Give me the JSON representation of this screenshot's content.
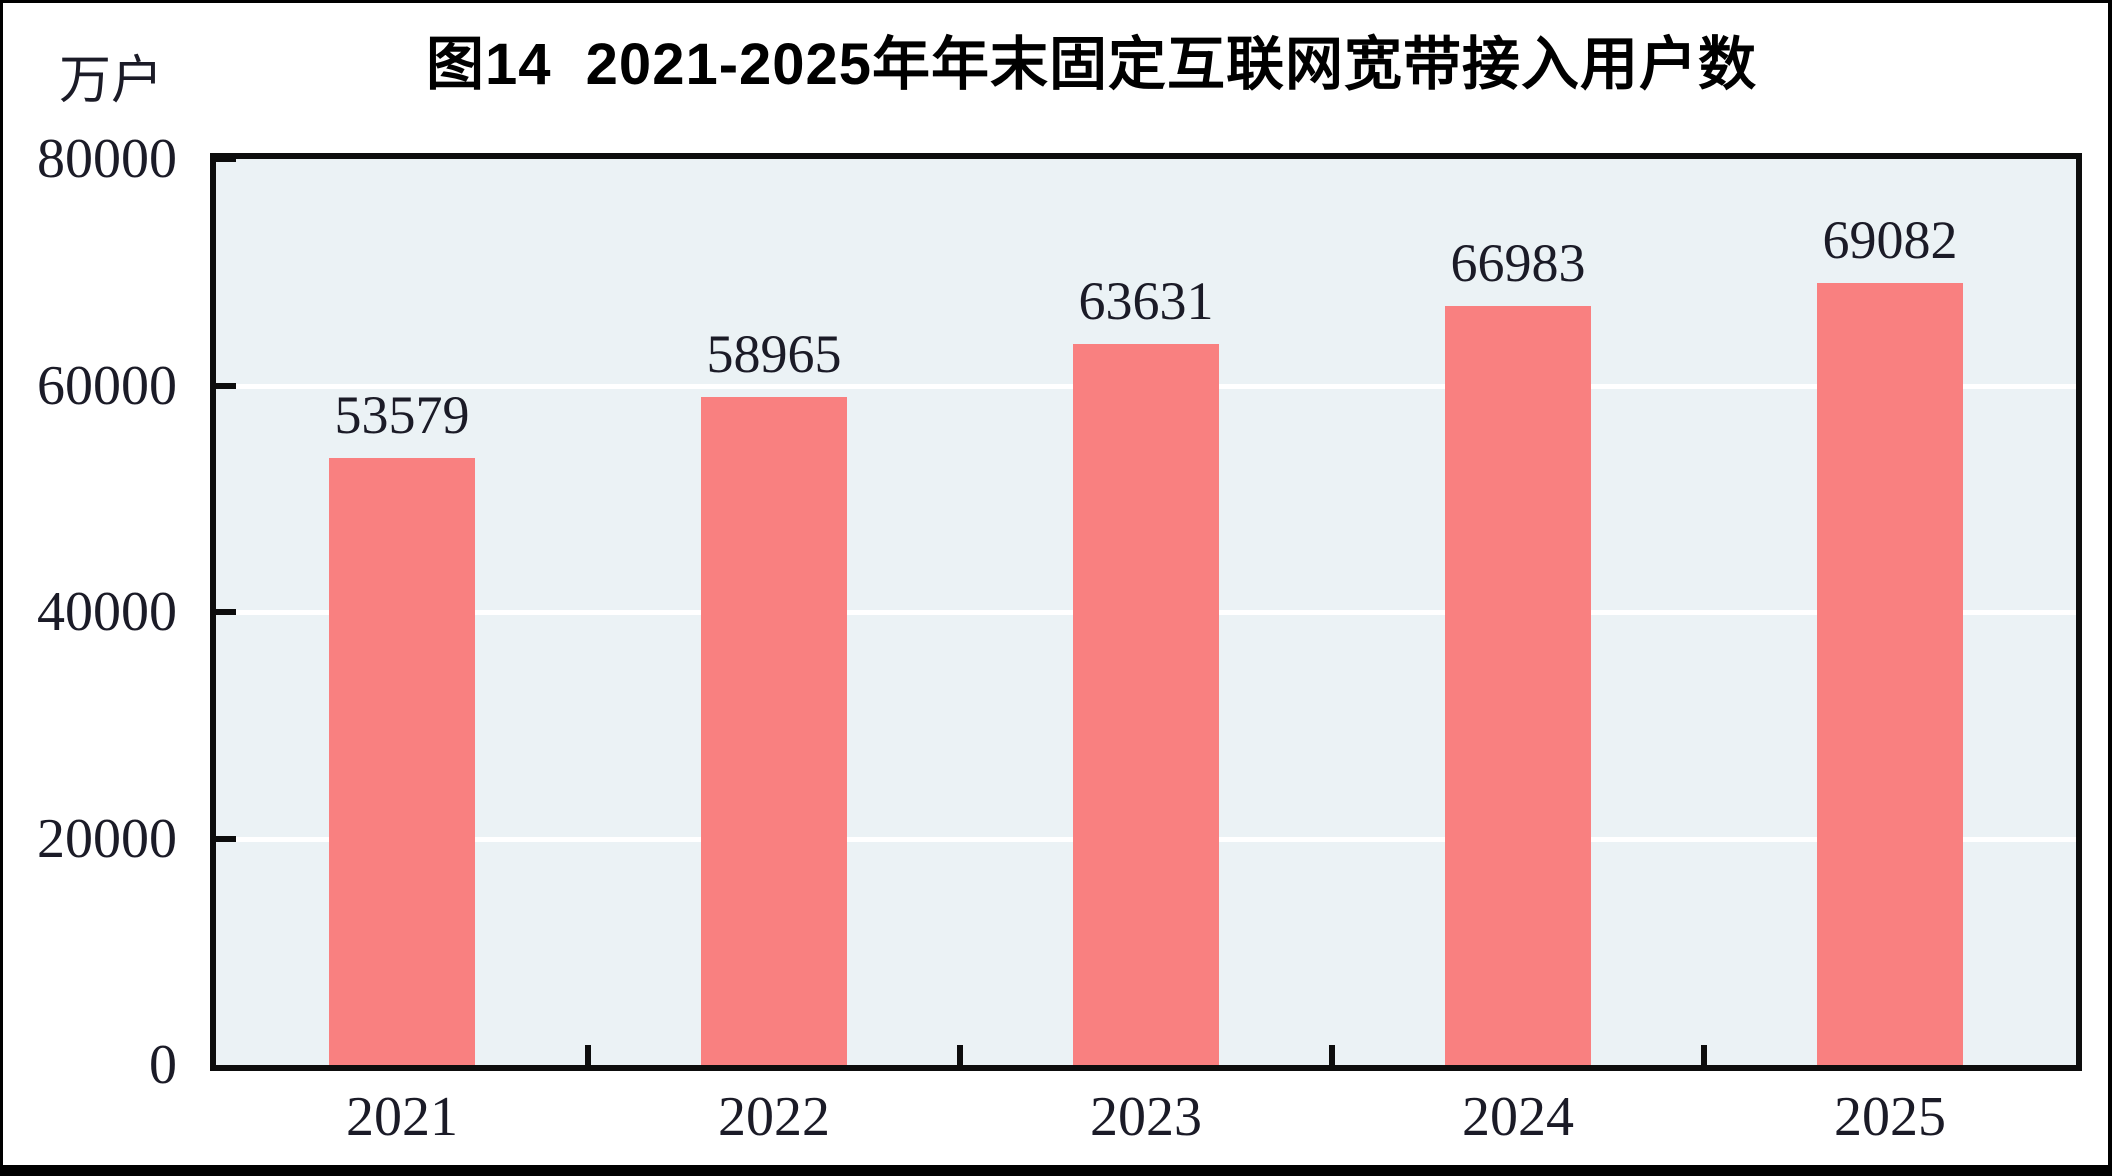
{
  "chart_data": {
    "type": "bar",
    "title": "图14  2021-2025年年末固定互联网宽带接入用户数",
    "unit_label": "万户",
    "categories": [
      "2021",
      "2022",
      "2023",
      "2024",
      "2025"
    ],
    "values": [
      53579,
      58965,
      63631,
      66983,
      69082
    ],
    "value_labels": [
      "53579",
      "58965",
      "63631",
      "66983",
      "69082"
    ],
    "xlabel": "",
    "ylabel": "万户",
    "ylim": [
      0,
      80000
    ],
    "ytick_interval": 20000,
    "ytick_labels": [
      "0",
      "20000",
      "40000",
      "60000",
      "80000"
    ],
    "grid": "horizontal white gridlines at 20000/40000/60000",
    "legend": "none",
    "colors": {
      "bar": "#F98080",
      "plot_background": "#EBF2F5",
      "gridline": "#FFFFFF",
      "axis": "#0D0D0D",
      "text": "#1B1B27",
      "title_text": "#000000",
      "frame": "#000000"
    }
  }
}
